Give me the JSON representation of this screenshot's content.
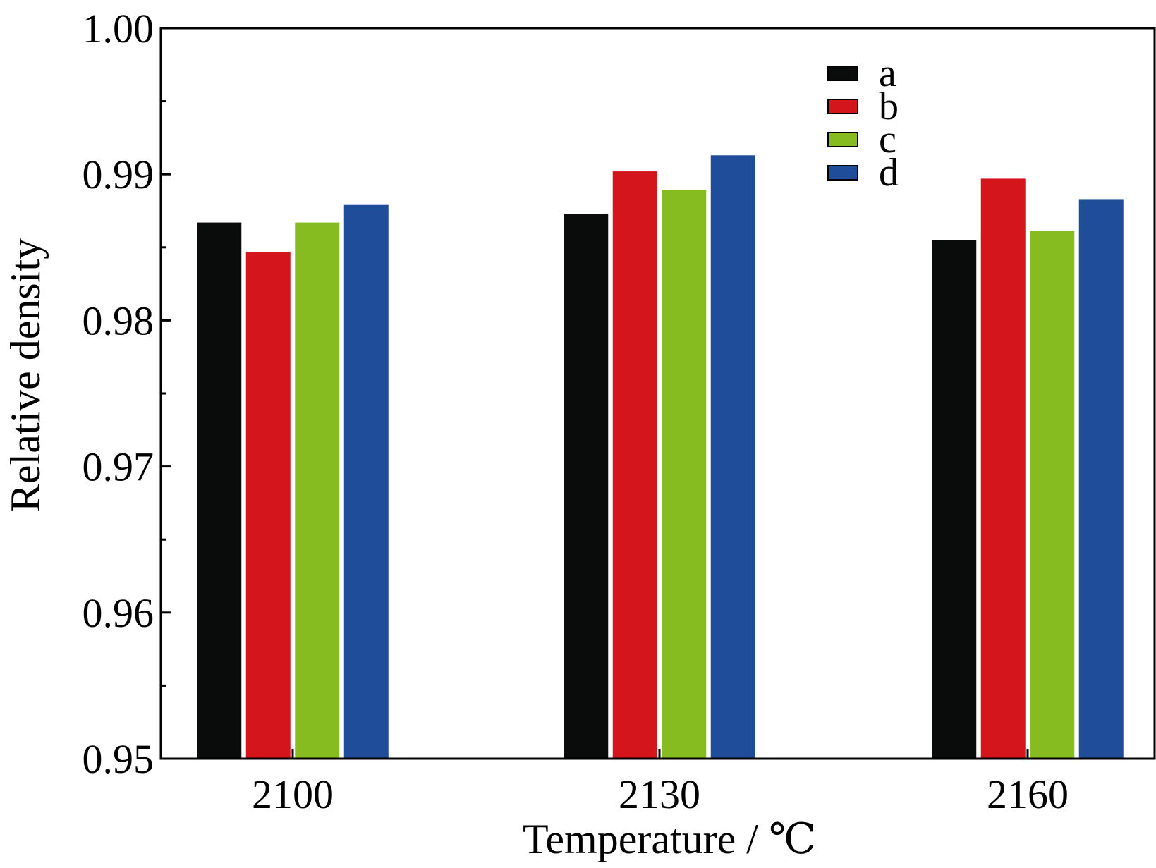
{
  "chart_data": {
    "type": "bar",
    "title": "",
    "xlabel": "Temperature / ℃",
    "ylabel": "Relative density",
    "categories": [
      "2100",
      "2130",
      "2160"
    ],
    "series": [
      {
        "name": "a",
        "color": "#0a0c0c",
        "values": [
          0.9867,
          0.9873,
          0.9855
        ]
      },
      {
        "name": "b",
        "color": "#d4151b",
        "values": [
          0.9847,
          0.9902,
          0.9897
        ]
      },
      {
        "name": "c",
        "color": "#86bc1f",
        "values": [
          0.9867,
          0.9889,
          0.9861
        ]
      },
      {
        "name": "d",
        "color": "#204d99",
        "values": [
          0.9879,
          0.9913,
          0.9883
        ]
      }
    ],
    "ylim": [
      0.95,
      1.0
    ],
    "yticks": [
      "0.95",
      "0.96",
      "0.97",
      "0.98",
      "0.99",
      "1.00"
    ],
    "y_minor_step": 0.005,
    "grid": false,
    "legend_position": "top-right"
  }
}
